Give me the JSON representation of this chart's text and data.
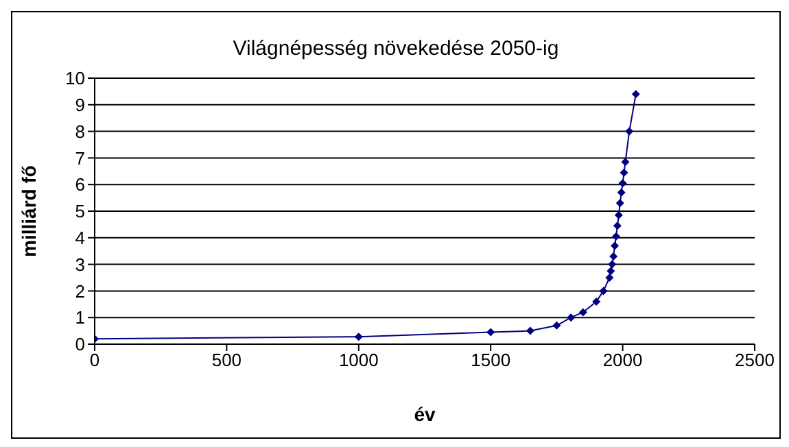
{
  "chart_data": {
    "type": "line",
    "title": "Világnépesség növekedése 2050-ig",
    "xlabel": "év",
    "ylabel": "milliárd fő",
    "x": [
      0,
      1000,
      1500,
      1650,
      1750,
      1804,
      1850,
      1900,
      1927,
      1950,
      1955,
      1960,
      1965,
      1970,
      1975,
      1980,
      1985,
      1990,
      1995,
      2000,
      2005,
      2010,
      2025,
      2050
    ],
    "series": [
      {
        "color": "#000080",
        "values": [
          0.2,
          0.28,
          0.45,
          0.5,
          0.7,
          1,
          1.2,
          1.6,
          2,
          2.5,
          2.75,
          3,
          3.3,
          3.7,
          4.05,
          4.45,
          4.85,
          5.3,
          5.7,
          6.05,
          6.45,
          6.85,
          8,
          9.4
        ]
      }
    ],
    "xlim": [
      0,
      2500
    ],
    "xticks": [
      0,
      500,
      1000,
      1500,
      2000,
      2500
    ],
    "ylim": [
      0,
      10
    ],
    "yticks": [
      0,
      1,
      2,
      3,
      4,
      5,
      6,
      7,
      8,
      9,
      10
    ],
    "grid": "y",
    "legend": false,
    "marker": "diamond",
    "line_style": "solid"
  }
}
